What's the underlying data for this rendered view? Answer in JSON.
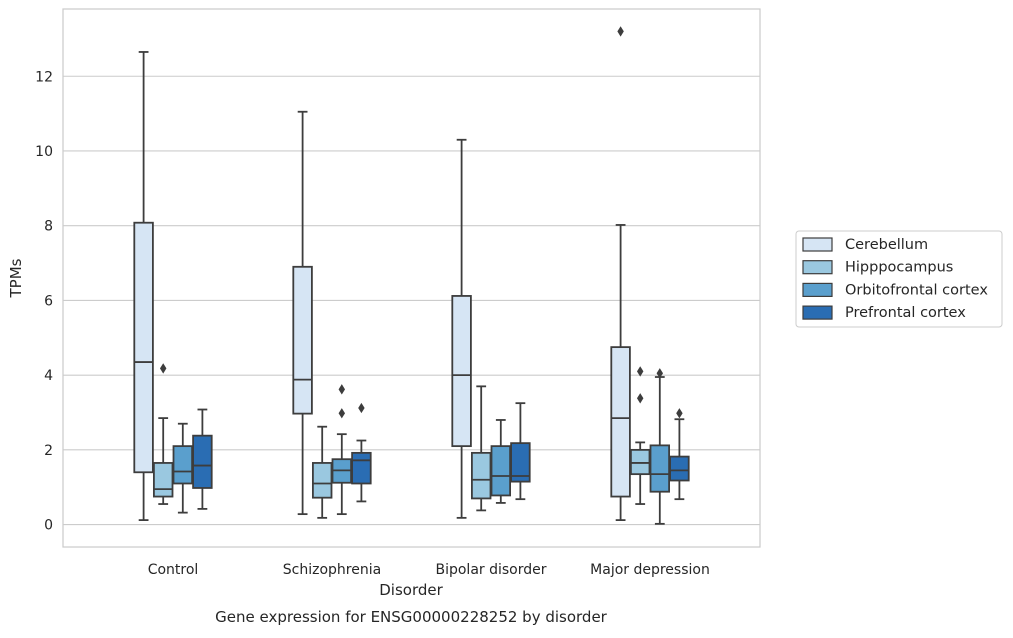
{
  "chart_data": {
    "type": "box",
    "caption": "Gene expression for ENSG00000228252 by disorder",
    "xlabel": "Disorder",
    "ylabel": "TPMs",
    "ylim": [
      -0.6,
      13.8
    ],
    "yticks": [
      0,
      2,
      4,
      6,
      8,
      10,
      12
    ],
    "grid": true,
    "legend_position": "right",
    "categories": [
      "Control",
      "Schizophrenia",
      "Bipolar disorder",
      "Major depression"
    ],
    "series": [
      {
        "name": "Cerebellum",
        "color": "#d6e5f4",
        "boxes": [
          {
            "whisker_low": 0.12,
            "q1": 1.4,
            "median": 4.35,
            "q3": 8.08,
            "whisker_high": 12.65,
            "outliers": []
          },
          {
            "whisker_low": 0.28,
            "q1": 2.97,
            "median": 3.88,
            "q3": 6.9,
            "whisker_high": 11.05,
            "outliers": []
          },
          {
            "whisker_low": 0.18,
            "q1": 2.1,
            "median": 4.0,
            "q3": 6.12,
            "whisker_high": 10.3,
            "outliers": []
          },
          {
            "whisker_low": 0.12,
            "q1": 0.75,
            "median": 2.85,
            "q3": 4.75,
            "whisker_high": 8.02,
            "outliers": [
              13.2
            ]
          }
        ]
      },
      {
        "name": "Hipppocampus",
        "color": "#9ac8e0",
        "boxes": [
          {
            "whisker_low": 0.55,
            "q1": 0.75,
            "median": 0.95,
            "q3": 1.65,
            "whisker_high": 2.85,
            "outliers": [
              4.18
            ]
          },
          {
            "whisker_low": 0.18,
            "q1": 0.72,
            "median": 1.1,
            "q3": 1.65,
            "whisker_high": 2.62,
            "outliers": []
          },
          {
            "whisker_low": 0.38,
            "q1": 0.7,
            "median": 1.2,
            "q3": 1.92,
            "whisker_high": 3.7,
            "outliers": []
          },
          {
            "whisker_low": 0.55,
            "q1": 1.35,
            "median": 1.65,
            "q3": 2.0,
            "whisker_high": 2.2,
            "outliers": [
              3.38,
              4.1
            ]
          }
        ]
      },
      {
        "name": "Orbitofrontal cortex",
        "color": "#5a9fcd",
        "boxes": [
          {
            "whisker_low": 0.32,
            "q1": 1.1,
            "median": 1.42,
            "q3": 2.1,
            "whisker_high": 2.7,
            "outliers": []
          },
          {
            "whisker_low": 0.28,
            "q1": 1.12,
            "median": 1.45,
            "q3": 1.75,
            "whisker_high": 2.42,
            "outliers": [
              2.98,
              3.62
            ]
          },
          {
            "whisker_low": 0.58,
            "q1": 0.78,
            "median": 1.3,
            "q3": 2.1,
            "whisker_high": 2.8,
            "outliers": []
          },
          {
            "whisker_low": 0.02,
            "q1": 0.88,
            "median": 1.35,
            "q3": 2.12,
            "whisker_high": 3.95,
            "outliers": [
              4.05
            ]
          }
        ]
      },
      {
        "name": "Prefrontal cortex",
        "color": "#2a6db3",
        "boxes": [
          {
            "whisker_low": 0.42,
            "q1": 0.98,
            "median": 1.58,
            "q3": 2.38,
            "whisker_high": 3.08,
            "outliers": []
          },
          {
            "whisker_low": 0.62,
            "q1": 1.1,
            "median": 1.72,
            "q3": 1.92,
            "whisker_high": 2.25,
            "outliers": [
              3.12
            ]
          },
          {
            "whisker_low": 0.68,
            "q1": 1.15,
            "median": 1.3,
            "q3": 2.18,
            "whisker_high": 3.25,
            "outliers": []
          },
          {
            "whisker_low": 0.68,
            "q1": 1.18,
            "median": 1.45,
            "q3": 1.82,
            "whisker_high": 2.82,
            "outliers": [
              2.98
            ]
          }
        ]
      }
    ]
  }
}
